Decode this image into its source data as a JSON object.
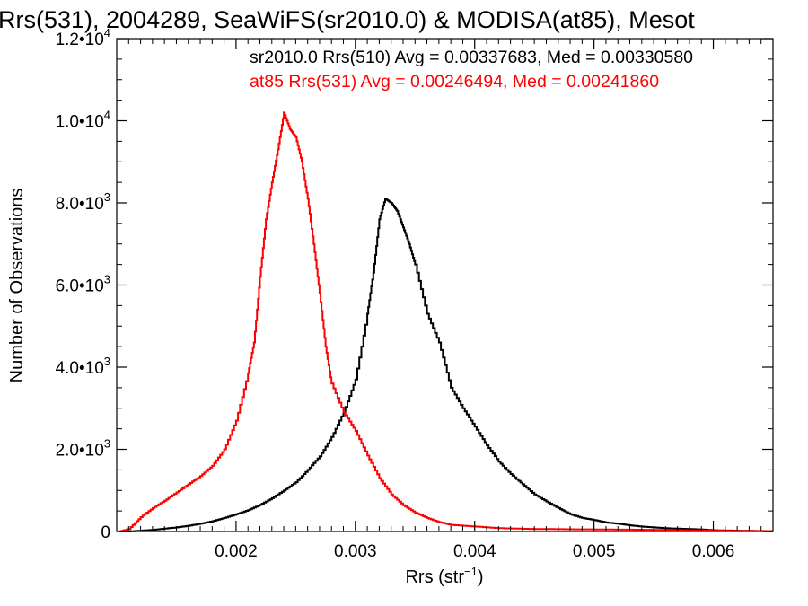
{
  "chart_data": {
    "type": "line",
    "title": "Rrs(531), 2004289, SeaWiFS(sr2010.0) & MODISA(at85), Mesot",
    "xlabel_main": "Rrs (str",
    "xlabel_sup": "−1",
    "xlabel_end": ")",
    "ylabel": "Number of Observations",
    "xlim": [
      0.001,
      0.0065
    ],
    "ylim": [
      0,
      12000
    ],
    "x_ticks": [
      {
        "value": 0.002,
        "label": "0.002"
      },
      {
        "value": 0.003,
        "label": "0.003"
      },
      {
        "value": 0.004,
        "label": "0.004"
      },
      {
        "value": 0.005,
        "label": "0.005"
      },
      {
        "value": 0.006,
        "label": "0.006"
      }
    ],
    "y_ticks": [
      {
        "value": 0,
        "mant": "0",
        "exp": ""
      },
      {
        "value": 2000,
        "mant": "2.0•10",
        "exp": "3"
      },
      {
        "value": 4000,
        "mant": "4.0•10",
        "exp": "3"
      },
      {
        "value": 6000,
        "mant": "6.0•10",
        "exp": "3"
      },
      {
        "value": 8000,
        "mant": "8.0•10",
        "exp": "3"
      },
      {
        "value": 10000,
        "mant": "1.0•10",
        "exp": "4"
      },
      {
        "value": 12000,
        "mant": "1.2•10",
        "exp": "4"
      }
    ],
    "annotations": [
      {
        "text": "sr2010.0 Rrs(510) Avg = 0.00337683, Med = 0.00330580",
        "color": "#000000"
      },
      {
        "text": "at85 Rrs(531) Avg = 0.00246494, Med = 0.00241860",
        "color": "#ff0000"
      }
    ],
    "series": [
      {
        "color": "#000000",
        "points": [
          [
            0.00102,
            0
          ],
          [
            0.0011,
            0
          ],
          [
            0.0012,
            20
          ],
          [
            0.0013,
            40
          ],
          [
            0.0014,
            70
          ],
          [
            0.0015,
            100
          ],
          [
            0.0016,
            140
          ],
          [
            0.0017,
            190
          ],
          [
            0.0018,
            250
          ],
          [
            0.0019,
            330
          ],
          [
            0.002,
            420
          ],
          [
            0.0021,
            520
          ],
          [
            0.0022,
            650
          ],
          [
            0.0023,
            810
          ],
          [
            0.0024,
            1000
          ],
          [
            0.0025,
            1200
          ],
          [
            0.0026,
            1500
          ],
          [
            0.0027,
            1830
          ],
          [
            0.0028,
            2300
          ],
          [
            0.0029,
            2900
          ],
          [
            0.003,
            3700
          ],
          [
            0.0031,
            5300
          ],
          [
            0.00315,
            6300
          ],
          [
            0.0032,
            7600
          ],
          [
            0.00325,
            8100
          ],
          [
            0.0033,
            8000
          ],
          [
            0.00335,
            7800
          ],
          [
            0.0034,
            7400
          ],
          [
            0.00345,
            7000
          ],
          [
            0.0035,
            6500
          ],
          [
            0.0036,
            5300
          ],
          [
            0.0037,
            4600
          ],
          [
            0.0038,
            3500
          ],
          [
            0.0039,
            3000
          ],
          [
            0.004,
            2550
          ],
          [
            0.0041,
            2100
          ],
          [
            0.0042,
            1700
          ],
          [
            0.0043,
            1400
          ],
          [
            0.0044,
            1150
          ],
          [
            0.0045,
            900
          ],
          [
            0.0046,
            730
          ],
          [
            0.0047,
            570
          ],
          [
            0.0048,
            420
          ],
          [
            0.0049,
            330
          ],
          [
            0.005,
            280
          ],
          [
            0.0051,
            220
          ],
          [
            0.0052,
            190
          ],
          [
            0.0053,
            150
          ],
          [
            0.0054,
            120
          ],
          [
            0.0055,
            100
          ],
          [
            0.0056,
            80
          ],
          [
            0.0057,
            70
          ],
          [
            0.0058,
            60
          ],
          [
            0.0059,
            50
          ],
          [
            0.006,
            30
          ],
          [
            0.0062,
            20
          ],
          [
            0.0064,
            10
          ],
          [
            0.0065,
            0
          ]
        ]
      },
      {
        "color": "#ff0000",
        "points": [
          [
            0.00102,
            0
          ],
          [
            0.0011,
            60
          ],
          [
            0.0012,
            350
          ],
          [
            0.0013,
            570
          ],
          [
            0.0014,
            750
          ],
          [
            0.0015,
            950
          ],
          [
            0.0016,
            1150
          ],
          [
            0.0017,
            1350
          ],
          [
            0.0018,
            1600
          ],
          [
            0.0019,
            2000
          ],
          [
            0.002,
            2700
          ],
          [
            0.0021,
            3850
          ],
          [
            0.00215,
            4600
          ],
          [
            0.0022,
            6200
          ],
          [
            0.00225,
            7600
          ],
          [
            0.0023,
            8500
          ],
          [
            0.00235,
            9300
          ],
          [
            0.0024,
            10200
          ],
          [
            0.00245,
            9800
          ],
          [
            0.0025,
            9600
          ],
          [
            0.00255,
            9000
          ],
          [
            0.0026,
            8100
          ],
          [
            0.00265,
            7000
          ],
          [
            0.0027,
            5800
          ],
          [
            0.00275,
            4500
          ],
          [
            0.0028,
            3600
          ],
          [
            0.0029,
            2900
          ],
          [
            0.003,
            2450
          ],
          [
            0.0031,
            1850
          ],
          [
            0.0032,
            1300
          ],
          [
            0.0033,
            900
          ],
          [
            0.0034,
            640
          ],
          [
            0.0035,
            460
          ],
          [
            0.0036,
            330
          ],
          [
            0.0037,
            230
          ],
          [
            0.0038,
            160
          ],
          [
            0.004,
            120
          ],
          [
            0.0042,
            80
          ],
          [
            0.0045,
            60
          ],
          [
            0.005,
            50
          ],
          [
            0.0055,
            40
          ],
          [
            0.006,
            20
          ],
          [
            0.0065,
            10
          ]
        ]
      }
    ]
  }
}
